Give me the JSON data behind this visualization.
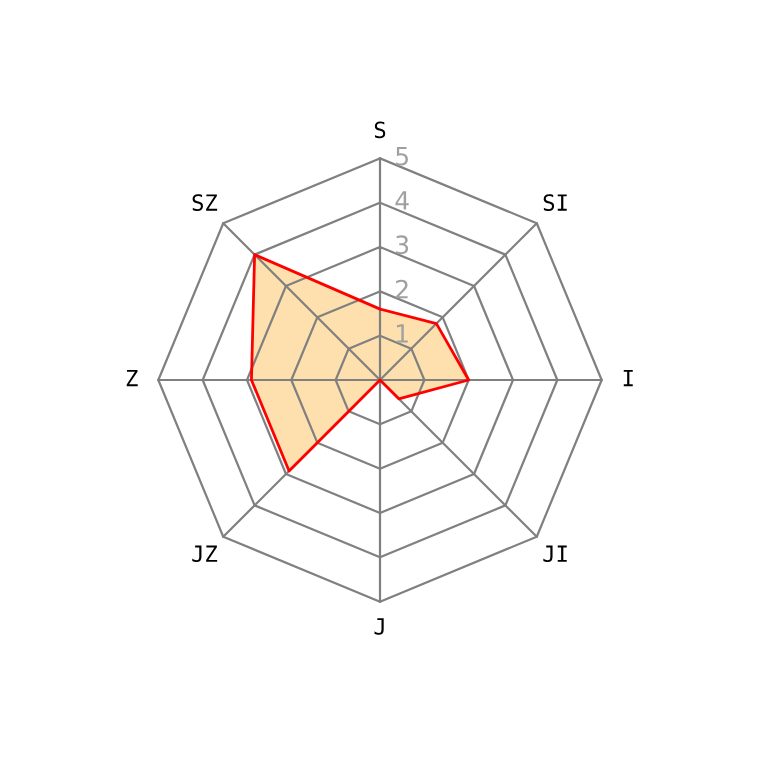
{
  "chart_data": {
    "type": "radar",
    "categories": [
      "S",
      "SI",
      "I",
      "JI",
      "J",
      "JZ",
      "Z",
      "SZ"
    ],
    "series": [
      {
        "color": "#ff0000",
        "values": [
          1.6,
          1.8,
          2,
          0.6,
          0,
          2.9,
          2.9,
          4
        ]
      }
    ],
    "ylim": [
      0,
      5
    ],
    "yticks": [
      1,
      2,
      3,
      4,
      5
    ],
    "grid": true
  }
}
